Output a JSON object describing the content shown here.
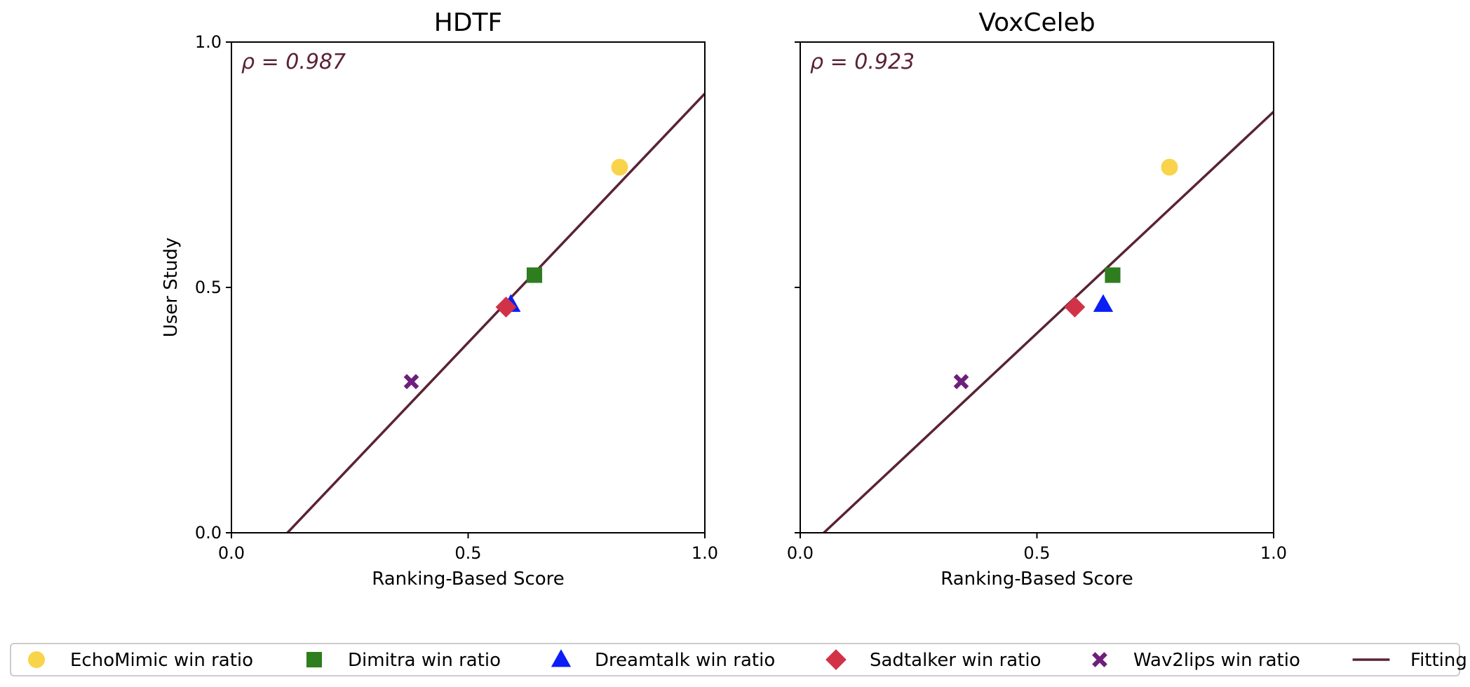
{
  "legend": {
    "position": "bottom",
    "entries": [
      {
        "label": "EchoMimic win ratio",
        "marker": "circle",
        "color": "#f9d44a"
      },
      {
        "label": "Dimitra win ratio",
        "marker": "square",
        "color": "#2e7d1e"
      },
      {
        "label": "Dreamtalk win ratio",
        "marker": "triangle",
        "color": "#0a1ef5"
      },
      {
        "label": "Sadtalker win ratio",
        "marker": "diamond",
        "color": "#d23247"
      },
      {
        "label": "Wav2lips win ratio",
        "marker": "x",
        "color": "#6e1f7c"
      },
      {
        "label": "Fitting",
        "marker": "line",
        "color": "#5a2333"
      }
    ]
  },
  "chart_data": [
    {
      "type": "scatter",
      "title": "HDTF",
      "xlabel": "Ranking-Based Score",
      "ylabel": "User Study",
      "xlim": [
        0.0,
        1.0
      ],
      "ylim": [
        0.0,
        1.0
      ],
      "xticks": [
        "0.0",
        "0.5",
        "1.0"
      ],
      "yticks": [
        "0.0",
        "0.5",
        "1.0"
      ],
      "show_ytick_labels": true,
      "grid": false,
      "annotation": "ρ = 0.987",
      "fit": {
        "x": [
          0.0,
          1.0
        ],
        "y": [
          -0.12,
          0.895
        ]
      },
      "points": [
        {
          "series": "EchoMimic win ratio",
          "x": 0.82,
          "y": 0.745
        },
        {
          "series": "Dimitra win ratio",
          "x": 0.64,
          "y": 0.525
        },
        {
          "series": "Dreamtalk win ratio",
          "x": 0.59,
          "y": 0.465
        },
        {
          "series": "Sadtalker win ratio",
          "x": 0.58,
          "y": 0.46
        },
        {
          "series": "Wav2lips win ratio",
          "x": 0.38,
          "y": 0.308
        }
      ]
    },
    {
      "type": "scatter",
      "title": "VoxCeleb",
      "xlabel": "Ranking-Based Score",
      "ylabel": "",
      "xlim": [
        0.0,
        1.0
      ],
      "ylim": [
        0.0,
        1.0
      ],
      "xticks": [
        "0.0",
        "0.5",
        "1.0"
      ],
      "yticks": [
        "",
        "",
        ""
      ],
      "show_ytick_labels": false,
      "grid": false,
      "annotation": "ρ = 0.923",
      "fit": {
        "x": [
          0.0,
          1.0
        ],
        "y": [
          -0.045,
          0.858
        ]
      },
      "points": [
        {
          "series": "EchoMimic win ratio",
          "x": 0.78,
          "y": 0.745
        },
        {
          "series": "Dimitra win ratio",
          "x": 0.66,
          "y": 0.525
        },
        {
          "series": "Dreamtalk win ratio",
          "x": 0.64,
          "y": 0.465
        },
        {
          "series": "Sadtalker win ratio",
          "x": 0.58,
          "y": 0.46
        },
        {
          "series": "Wav2lips win ratio",
          "x": 0.34,
          "y": 0.308
        }
      ]
    }
  ]
}
